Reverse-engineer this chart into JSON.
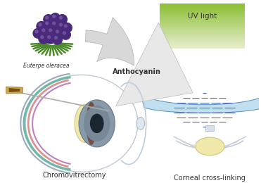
{
  "bg_color": "#ffffff",
  "label_euterpe": "Euterpe oleracea",
  "label_anthocyanin": "Anthocyanin",
  "label_chromovitrectomy": "Chromovitrectomy",
  "label_corneal": "Corneal cross-linking",
  "label_uv": "UV light",
  "berry_color": "#4a2a7a",
  "leaf_color": "#4a8a2a",
  "cornea_fill": "#c0dff0",
  "cornea_line": "#3355aa",
  "arrow_color": "#c8c8c8",
  "text_color": "#333333",
  "font_size_label": 7.0,
  "font_size_small": 5.5,
  "font_size_uv": 7.5
}
